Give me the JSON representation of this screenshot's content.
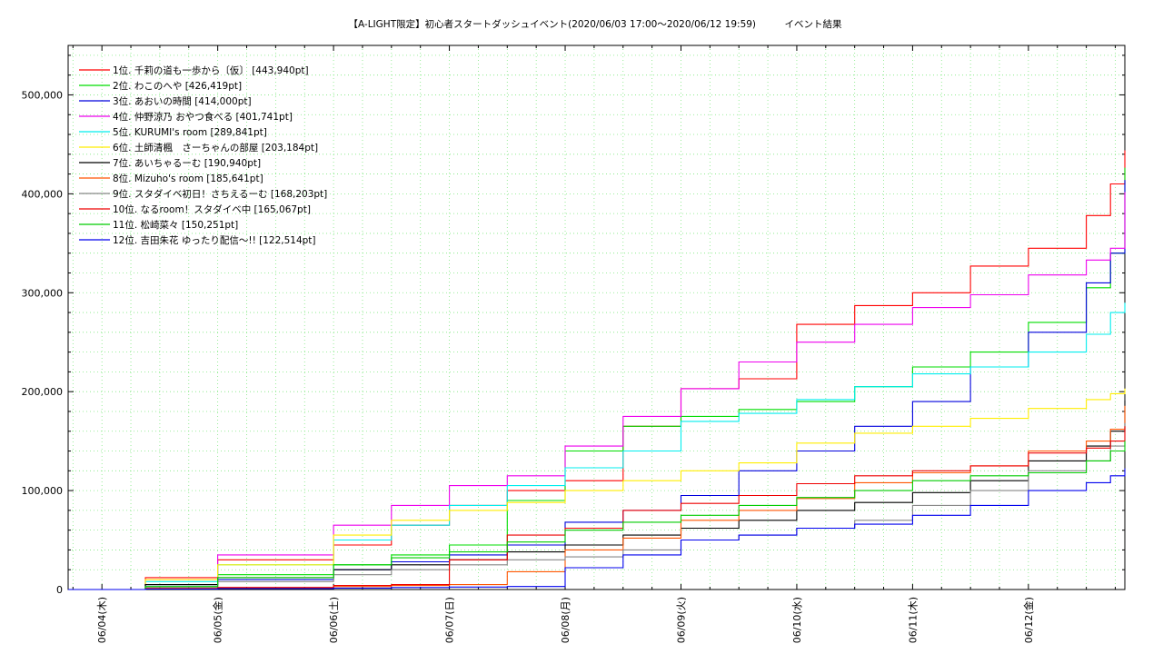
{
  "chart_data": {
    "type": "line",
    "title": "【A-LIGHT限定】初心者スタートダッシュイベント(2020/06/03 17:00～2020/06/12 19:59)　　　イベント結果",
    "xlabel": "",
    "ylabel": "",
    "ylim": [
      0,
      550000
    ],
    "y_ticks": [
      0,
      100000,
      200000,
      300000,
      400000,
      500000
    ],
    "y_tick_labels": [
      "0",
      "100,000",
      "200,000",
      "300,000",
      "400,000",
      "500,000"
    ],
    "x_start": "2020/06/03 17:00",
    "x_end": "2020/06/12 19:59",
    "x_tick_labels": [
      "06/04(木)",
      "06/05(金)",
      "06/06(土)",
      "06/07(日)",
      "06/08(月)",
      "06/09(火)",
      "06/10(水)",
      "06/11(木)",
      "06/12(金)"
    ],
    "grid": true,
    "legend_position": "top-left",
    "series": [
      {
        "name": "1位. 千莉の道も一歩から〔仮〕 [443,940pt]",
        "color": "#ff0000",
        "x": [
          "2020/06/03 17:00",
          "2020/06/04 09:00",
          "2020/06/05 00:00",
          "2020/06/06 00:00",
          "2020/06/06 12:00",
          "2020/06/07 00:00",
          "2020/06/07 12:00",
          "2020/06/08 00:00",
          "2020/06/08 12:00",
          "2020/06/09 00:00",
          "2020/06/09 12:00",
          "2020/06/10 00:00",
          "2020/06/10 12:00",
          "2020/06/11 00:00",
          "2020/06/11 12:00",
          "2020/06/12 00:00",
          "2020/06/12 12:00",
          "2020/06/12 17:00",
          "2020/06/12 19:59"
        ],
        "y": [
          0,
          12000,
          30000,
          45000,
          65000,
          85000,
          100000,
          110000,
          165000,
          203000,
          213000,
          268000,
          287000,
          300000,
          327000,
          345000,
          378000,
          410000,
          443940
        ]
      },
      {
        "name": "2位. わこのへや [426,419pt]",
        "color": "#00dd00",
        "x": [
          "2020/06/03 17:00",
          "2020/06/04 09:00",
          "2020/06/05 00:00",
          "2020/06/06 00:00",
          "2020/06/06 12:00",
          "2020/06/07 00:00",
          "2020/06/07 12:00",
          "2020/06/08 00:00",
          "2020/06/08 12:00",
          "2020/06/09 00:00",
          "2020/06/09 12:00",
          "2020/06/10 00:00",
          "2020/06/10 12:00",
          "2020/06/11 00:00",
          "2020/06/11 12:00",
          "2020/06/12 00:00",
          "2020/06/12 12:00",
          "2020/06/12 17:00",
          "2020/06/12 19:59"
        ],
        "y": [
          0,
          5000,
          15000,
          25000,
          35000,
          45000,
          90000,
          140000,
          165000,
          175000,
          182000,
          190000,
          205000,
          225000,
          240000,
          270000,
          305000,
          340000,
          426419
        ]
      },
      {
        "name": "3位. あおいの時間 [414,000pt]",
        "color": "#0000dd",
        "x": [
          "2020/06/03 17:00",
          "2020/06/04 09:00",
          "2020/06/05 00:00",
          "2020/06/06 00:00",
          "2020/06/06 12:00",
          "2020/06/07 00:00",
          "2020/06/07 12:00",
          "2020/06/08 00:00",
          "2020/06/08 12:00",
          "2020/06/09 00:00",
          "2020/06/09 12:00",
          "2020/06/10 00:00",
          "2020/06/10 12:00",
          "2020/06/11 00:00",
          "2020/06/11 12:00",
          "2020/06/12 00:00",
          "2020/06/12 12:00",
          "2020/06/12 17:00",
          "2020/06/12 19:59"
        ],
        "y": [
          0,
          5000,
          10000,
          20000,
          28000,
          35000,
          45000,
          68000,
          80000,
          95000,
          120000,
          140000,
          165000,
          190000,
          225000,
          260000,
          310000,
          340000,
          414000
        ]
      },
      {
        "name": "4位. 仲野涼乃 おやつ食べる [401,741pt]",
        "color": "#ee00ee",
        "x": [
          "2020/06/03 17:00",
          "2020/06/04 09:00",
          "2020/06/05 00:00",
          "2020/06/06 00:00",
          "2020/06/06 12:00",
          "2020/06/07 00:00",
          "2020/06/07 12:00",
          "2020/06/08 00:00",
          "2020/06/08 12:00",
          "2020/06/09 00:00",
          "2020/06/09 12:00",
          "2020/06/10 00:00",
          "2020/06/10 12:00",
          "2020/06/11 00:00",
          "2020/06/11 12:00",
          "2020/06/12 00:00",
          "2020/06/12 12:00",
          "2020/06/12 17:00",
          "2020/06/12 19:59"
        ],
        "y": [
          0,
          10000,
          35000,
          65000,
          85000,
          105000,
          115000,
          145000,
          175000,
          203000,
          230000,
          250000,
          268000,
          285000,
          298000,
          318000,
          333000,
          345000,
          401741
        ]
      },
      {
        "name": "5位. KURUMI's room [289,841pt]",
        "color": "#00eeee",
        "x": [
          "2020/06/03 17:00",
          "2020/06/04 09:00",
          "2020/06/05 00:00",
          "2020/06/06 00:00",
          "2020/06/06 12:00",
          "2020/06/07 00:00",
          "2020/06/07 12:00",
          "2020/06/08 00:00",
          "2020/06/08 12:00",
          "2020/06/09 00:00",
          "2020/06/09 12:00",
          "2020/06/10 00:00",
          "2020/06/10 12:00",
          "2020/06/11 00:00",
          "2020/06/11 12:00",
          "2020/06/12 00:00",
          "2020/06/12 12:00",
          "2020/06/12 17:00",
          "2020/06/12 19:59"
        ],
        "y": [
          0,
          8000,
          25000,
          50000,
          65000,
          85000,
          105000,
          123000,
          140000,
          170000,
          178000,
          192000,
          205000,
          218000,
          225000,
          240000,
          258000,
          280000,
          289841
        ]
      },
      {
        "name": "6位. 土師清楓　さーちゃんの部屋 [203,184pt]",
        "color": "#ffee00",
        "x": [
          "2020/06/03 17:00",
          "2020/06/04 09:00",
          "2020/06/05 00:00",
          "2020/06/06 00:00",
          "2020/06/06 12:00",
          "2020/06/07 00:00",
          "2020/06/07 12:00",
          "2020/06/08 00:00",
          "2020/06/08 12:00",
          "2020/06/09 00:00",
          "2020/06/09 12:00",
          "2020/06/10 00:00",
          "2020/06/10 12:00",
          "2020/06/11 00:00",
          "2020/06/11 12:00",
          "2020/06/12 00:00",
          "2020/06/12 12:00",
          "2020/06/12 17:00",
          "2020/06/12 19:59"
        ],
        "y": [
          0,
          10000,
          25000,
          55000,
          70000,
          80000,
          88000,
          100000,
          110000,
          120000,
          128000,
          148000,
          158000,
          165000,
          173000,
          183000,
          192000,
          198000,
          203184
        ]
      },
      {
        "name": "7位. あいちゃるーむ [190,940pt]",
        "color": "#000000",
        "x": [
          "2020/06/03 17:00",
          "2020/06/04 09:00",
          "2020/06/05 00:00",
          "2020/06/06 00:00",
          "2020/06/06 12:00",
          "2020/06/07 00:00",
          "2020/06/07 12:00",
          "2020/06/08 00:00",
          "2020/06/08 12:00",
          "2020/06/09 00:00",
          "2020/06/09 12:00",
          "2020/06/10 00:00",
          "2020/06/10 12:00",
          "2020/06/11 00:00",
          "2020/06/11 12:00",
          "2020/06/12 00:00",
          "2020/06/12 12:00",
          "2020/06/12 17:00",
          "2020/06/12 19:59"
        ],
        "y": [
          0,
          5000,
          12000,
          20000,
          25000,
          30000,
          38000,
          45000,
          55000,
          62000,
          70000,
          80000,
          88000,
          98000,
          110000,
          130000,
          145000,
          160000,
          190940
        ]
      },
      {
        "name": "8位. Mizuho's room [185,641pt]",
        "color": "#ff5500",
        "x": [
          "2020/06/03 17:00",
          "2020/06/04 09:00",
          "2020/06/05 00:00",
          "2020/06/06 00:00",
          "2020/06/06 12:00",
          "2020/06/07 00:00",
          "2020/06/07 12:00",
          "2020/06/08 00:00",
          "2020/06/08 12:00",
          "2020/06/09 00:00",
          "2020/06/09 12:00",
          "2020/06/10 00:00",
          "2020/06/10 12:00",
          "2020/06/11 00:00",
          "2020/06/11 12:00",
          "2020/06/12 00:00",
          "2020/06/12 12:00",
          "2020/06/12 17:00",
          "2020/06/12 19:59"
        ],
        "y": [
          0,
          1000,
          2000,
          3000,
          4000,
          5000,
          18000,
          40000,
          52000,
          70000,
          80000,
          92000,
          108000,
          118000,
          125000,
          140000,
          150000,
          162000,
          185641
        ]
      },
      {
        "name": "9位. スタダイベ初日！さちえるーむ [168,203pt]",
        "color": "#888888",
        "x": [
          "2020/06/03 17:00",
          "2020/06/04 09:00",
          "2020/06/05 00:00",
          "2020/06/06 00:00",
          "2020/06/06 12:00",
          "2020/06/07 00:00",
          "2020/06/07 12:00",
          "2020/06/08 00:00",
          "2020/06/08 12:00",
          "2020/06/09 00:00",
          "2020/06/09 12:00",
          "2020/06/10 00:00",
          "2020/06/10 12:00",
          "2020/06/11 00:00",
          "2020/06/11 12:00",
          "2020/06/12 00:00",
          "2020/06/12 12:00",
          "2020/06/12 17:00",
          "2020/06/12 19:59"
        ],
        "y": [
          0,
          2000,
          8000,
          15000,
          20000,
          25000,
          30000,
          33000,
          40000,
          50000,
          55000,
          62000,
          70000,
          85000,
          100000,
          120000,
          130000,
          145000,
          168203
        ]
      },
      {
        "name": "10位. なるroom！スタダイベ中 [165,067pt]",
        "color": "#ee0000",
        "x": [
          "2020/06/03 17:00",
          "2020/06/04 09:00",
          "2020/06/05 00:00",
          "2020/06/06 00:00",
          "2020/06/06 12:00",
          "2020/06/07 00:00",
          "2020/06/07 12:00",
          "2020/06/08 00:00",
          "2020/06/08 12:00",
          "2020/06/09 00:00",
          "2020/06/09 12:00",
          "2020/06/10 00:00",
          "2020/06/10 12:00",
          "2020/06/11 00:00",
          "2020/06/11 12:00",
          "2020/06/12 00:00",
          "2020/06/12 12:00",
          "2020/06/12 17:00",
          "2020/06/12 19:59"
        ],
        "y": [
          0,
          1000,
          2000,
          4000,
          5000,
          30000,
          55000,
          62000,
          80000,
          87000,
          95000,
          107000,
          115000,
          120000,
          125000,
          138000,
          143000,
          150000,
          165067
        ]
      },
      {
        "name": "11位. 松崎菜々 [150,251pt]",
        "color": "#00cc00",
        "x": [
          "2020/06/03 17:00",
          "2020/06/04 09:00",
          "2020/06/05 00:00",
          "2020/06/06 00:00",
          "2020/06/06 12:00",
          "2020/06/07 00:00",
          "2020/06/07 12:00",
          "2020/06/08 00:00",
          "2020/06/08 12:00",
          "2020/06/09 00:00",
          "2020/06/09 12:00",
          "2020/06/10 00:00",
          "2020/06/10 12:00",
          "2020/06/11 00:00",
          "2020/06/11 12:00",
          "2020/06/12 00:00",
          "2020/06/12 12:00",
          "2020/06/12 17:00",
          "2020/06/12 19:59"
        ],
        "y": [
          0,
          3000,
          12000,
          25000,
          32000,
          38000,
          48000,
          60000,
          68000,
          75000,
          85000,
          93000,
          100000,
          110000,
          115000,
          118000,
          130000,
          140000,
          150251
        ]
      },
      {
        "name": "12位. 吉田朱花 ゆったり配信〜!! [122,514pt]",
        "color": "#0000ee",
        "x": [
          "2020/06/03 17:00",
          "2020/06/04 09:00",
          "2020/06/05 00:00",
          "2020/06/06 00:00",
          "2020/06/06 12:00",
          "2020/06/07 00:00",
          "2020/06/07 12:00",
          "2020/06/08 00:00",
          "2020/06/08 12:00",
          "2020/06/09 00:00",
          "2020/06/09 12:00",
          "2020/06/10 00:00",
          "2020/06/10 12:00",
          "2020/06/11 00:00",
          "2020/06/11 12:00",
          "2020/06/12 00:00",
          "2020/06/12 12:00",
          "2020/06/12 17:00",
          "2020/06/12 19:59"
        ],
        "y": [
          0,
          500,
          1000,
          1500,
          2000,
          2500,
          3000,
          22000,
          35000,
          50000,
          55000,
          62000,
          66000,
          75000,
          85000,
          100000,
          108000,
          115000,
          122514
        ]
      }
    ]
  }
}
